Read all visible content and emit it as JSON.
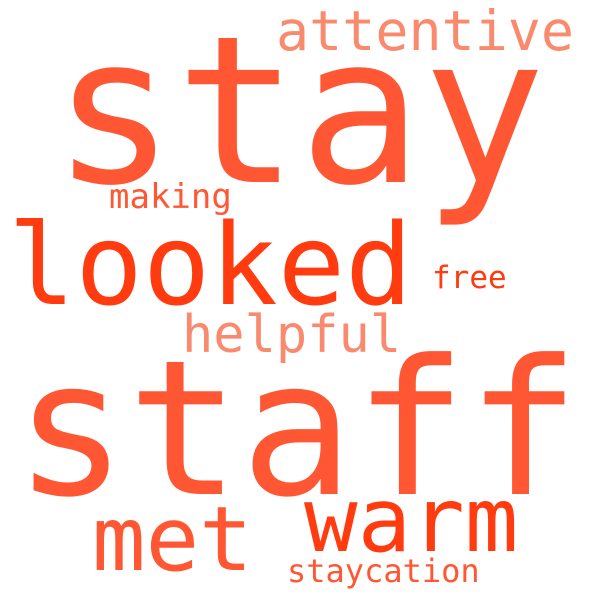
{
  "words": [
    {
      "id": "w-stay",
      "text": "stay",
      "color": "#ff5733"
    },
    {
      "id": "w-staff",
      "text": "staff",
      "color": "#ff5733"
    },
    {
      "id": "w-looked",
      "text": "looked",
      "color": "#ff3b0f"
    },
    {
      "id": "w-attentive",
      "text": "attentive",
      "color": "#fa8a6e"
    },
    {
      "id": "w-warm",
      "text": "warm",
      "color": "#ff3b0f"
    },
    {
      "id": "w-met",
      "text": "met",
      "color": "#ff5733"
    },
    {
      "id": "w-helpful",
      "text": "helpful",
      "color": "#fa8a6e"
    },
    {
      "id": "w-making",
      "text": "making",
      "color": "#ff5733"
    },
    {
      "id": "w-free",
      "text": "free",
      "color": "#ff3b0f"
    },
    {
      "id": "w-staycation",
      "text": "staycation",
      "color": "#ff5733"
    }
  ]
}
